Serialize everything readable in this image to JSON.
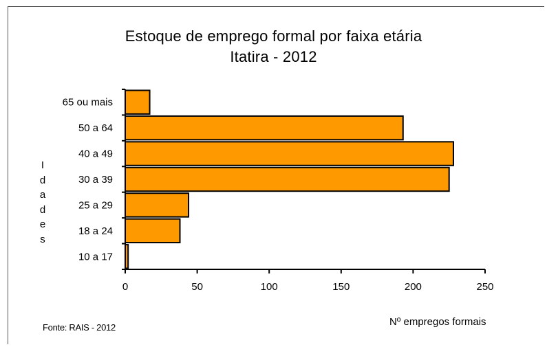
{
  "chart_data": {
    "type": "bar",
    "orientation": "horizontal",
    "title": "Estoque de emprego formal por faixa etária",
    "subtitle": "Itatira - 2012",
    "ylabel": "Idades",
    "xlabel": "Nº empregos formais",
    "categories": [
      "65 ou mais",
      "50 a 64",
      "40 a 49",
      "30 a 39",
      "25 a 29",
      "18 a 24",
      "10 a 17"
    ],
    "values": [
      17,
      193,
      228,
      225,
      44,
      38,
      2
    ],
    "xlim": [
      0,
      250
    ],
    "xticks": [
      "0",
      "50",
      "100",
      "150",
      "200",
      "250"
    ],
    "bar_color": "#FF9900",
    "legend": "none",
    "grid": false,
    "source": "Fonte: RAIS - 2012"
  }
}
